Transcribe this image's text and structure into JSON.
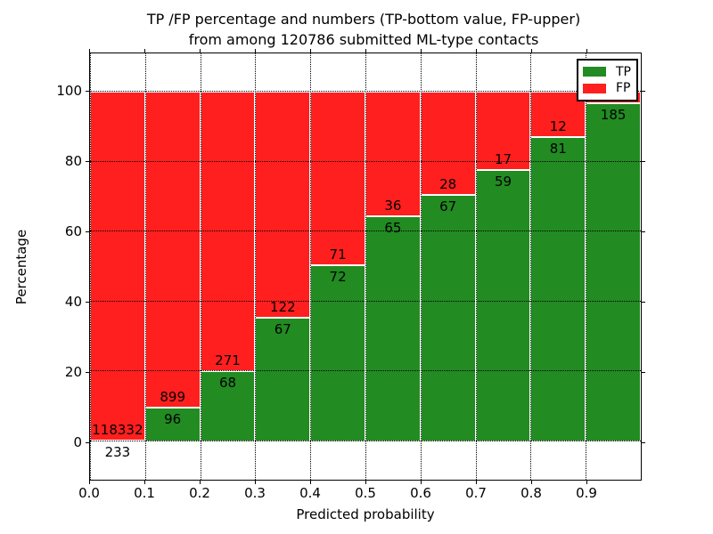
{
  "chart_data": {
    "type": "bar",
    "stacked": true,
    "title_line1": "TP /FP percentage and numbers (TP-bottom value, FP-upper)",
    "title_line2": "from among 120786 submitted ML-type contacts",
    "xlabel": "Predicted probability",
    "ylabel": "Percentage",
    "xlim": [
      0.0,
      1.0
    ],
    "ylim": [
      -11,
      111
    ],
    "x_tick_labels": [
      "0.0",
      "0.1",
      "0.2",
      "0.3",
      "0.4",
      "0.5",
      "0.6",
      "0.7",
      "0.8",
      "0.9"
    ],
    "y_tick_labels": [
      "0",
      "20",
      "40",
      "60",
      "80",
      "100"
    ],
    "grid": "dotted",
    "bar_edge_color": "#ffffff",
    "series": [
      {
        "name": "TP",
        "color": "#228b22"
      },
      {
        "name": "FP",
        "color": "#ff1f1f"
      }
    ],
    "legend": {
      "position": "upper right",
      "entries": [
        "TP",
        "FP"
      ]
    },
    "bars": [
      {
        "x_start": 0.0,
        "x_end": 0.1,
        "tp_pct": 0.2,
        "tp_count": "233",
        "fp_count": "118332"
      },
      {
        "x_start": 0.1,
        "x_end": 0.2,
        "tp_pct": 9.65,
        "tp_count": "96",
        "fp_count": "899"
      },
      {
        "x_start": 0.2,
        "x_end": 0.3,
        "tp_pct": 20.06,
        "tp_count": "68",
        "fp_count": "271"
      },
      {
        "x_start": 0.3,
        "x_end": 0.4,
        "tp_pct": 35.45,
        "tp_count": "67",
        "fp_count": "122"
      },
      {
        "x_start": 0.4,
        "x_end": 0.5,
        "tp_pct": 50.35,
        "tp_count": "72",
        "fp_count": "71"
      },
      {
        "x_start": 0.5,
        "x_end": 0.6,
        "tp_pct": 64.36,
        "tp_count": "65",
        "fp_count": "36"
      },
      {
        "x_start": 0.6,
        "x_end": 0.7,
        "tp_pct": 70.53,
        "tp_count": "67",
        "fp_count": "28"
      },
      {
        "x_start": 0.7,
        "x_end": 0.8,
        "tp_pct": 77.63,
        "tp_count": "59",
        "fp_count": "17"
      },
      {
        "x_start": 0.8,
        "x_end": 0.9,
        "tp_pct": 87.1,
        "tp_count": "81",
        "fp_count": "12"
      },
      {
        "x_start": 0.9,
        "x_end": 1.0,
        "tp_pct": 96.86,
        "tp_count": "185",
        "fp_count": null
      }
    ]
  }
}
